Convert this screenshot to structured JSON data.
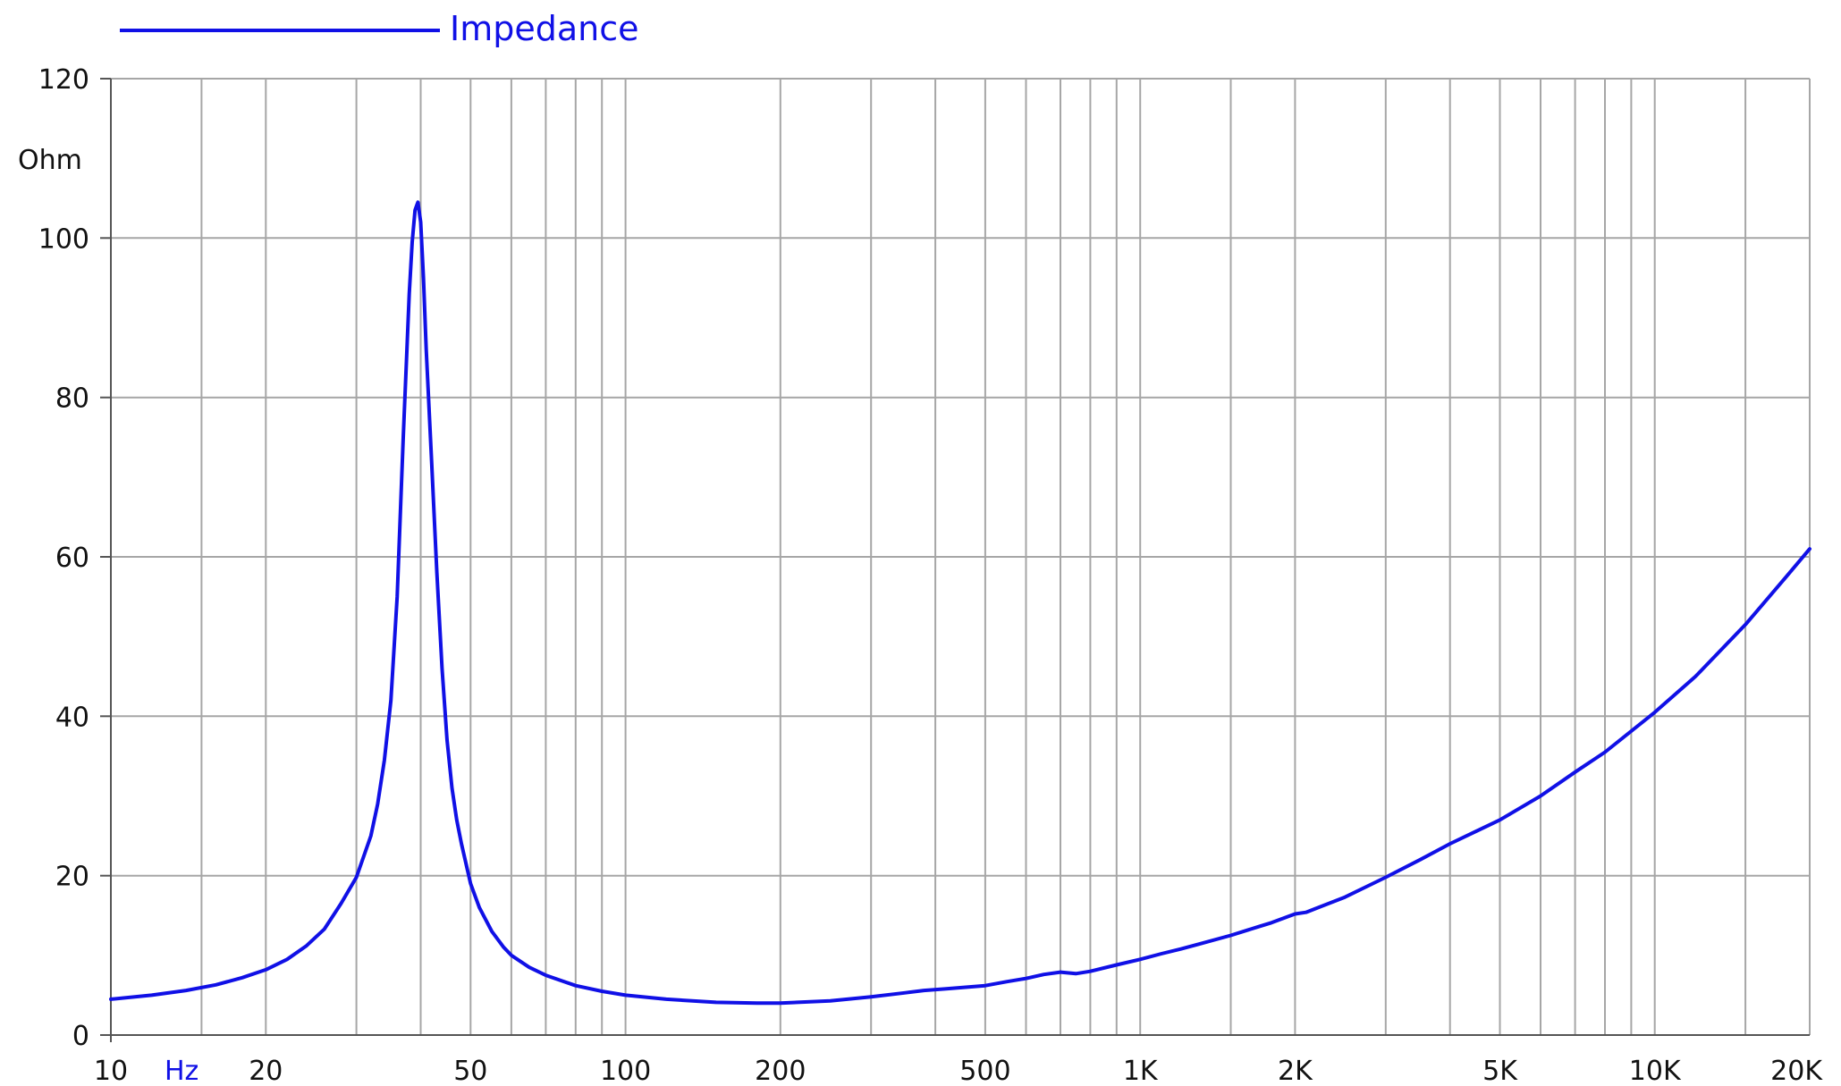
{
  "chart_data": {
    "type": "line",
    "xscale": "log",
    "xlim": [
      10,
      20000
    ],
    "ylim": [
      0,
      120
    ],
    "grid": true,
    "legend_position": "top-left",
    "x_unit_label": "Hz",
    "y_unit_label": "Ohm",
    "x_tick_labels": [
      {
        "value": 10,
        "label": "10"
      },
      {
        "value": 20,
        "label": "20"
      },
      {
        "value": 50,
        "label": "50"
      },
      {
        "value": 100,
        "label": "100"
      },
      {
        "value": 200,
        "label": "200"
      },
      {
        "value": 500,
        "label": "500"
      },
      {
        "value": 1000,
        "label": "1K"
      },
      {
        "value": 2000,
        "label": "2K"
      },
      {
        "value": 5000,
        "label": "5K"
      },
      {
        "value": 10000,
        "label": "10K"
      },
      {
        "value": 20000,
        "label": "20K"
      }
    ],
    "x_gridlines": [
      10,
      15,
      20,
      30,
      40,
      50,
      60,
      70,
      80,
      90,
      100,
      200,
      300,
      400,
      500,
      600,
      700,
      800,
      900,
      1000,
      1500,
      2000,
      3000,
      4000,
      5000,
      6000,
      7000,
      8000,
      9000,
      10000,
      15000,
      20000
    ],
    "y_ticks": [
      0,
      20,
      40,
      60,
      80,
      100,
      120
    ],
    "colors": {
      "series": "#1010e6",
      "grid": "#a6a6a6",
      "unit_hz": "#1010e6"
    },
    "series": [
      {
        "name": "Impedance",
        "x": [
          10,
          12,
          14,
          16,
          18,
          20,
          22,
          24,
          26,
          28,
          30,
          32,
          33,
          34,
          35,
          36,
          37,
          38,
          38.5,
          39,
          39.5,
          40,
          40.5,
          41,
          42,
          43,
          44,
          45,
          46,
          47,
          48,
          50,
          52,
          55,
          58,
          60,
          65,
          70,
          80,
          90,
          100,
          120,
          150,
          180,
          200,
          250,
          300,
          350,
          380,
          420,
          500,
          550,
          600,
          650,
          700,
          750,
          800,
          900,
          1000,
          1100,
          1200,
          1300,
          1500,
          1700,
          1800,
          2000,
          2100,
          2500,
          3000,
          3500,
          4000,
          5000,
          6000,
          7000,
          8000,
          10000,
          12000,
          15000,
          18000,
          20000
        ],
        "y": [
          4.5,
          5,
          5.6,
          6.3,
          7.2,
          8.2,
          9.5,
          11.2,
          13.3,
          16.5,
          19.8,
          25,
          29,
          34.5,
          42,
          55,
          75,
          93,
          99.5,
          103.5,
          104.5,
          102,
          95,
          86,
          72,
          58,
          46,
          37,
          31,
          27,
          24,
          19,
          16,
          13,
          11,
          10,
          8.5,
          7.5,
          6.2,
          5.5,
          5,
          4.5,
          4.1,
          4,
          4,
          4.3,
          4.8,
          5.3,
          5.6,
          5.8,
          6.2,
          6.7,
          7.1,
          7.6,
          7.9,
          7.7,
          8,
          8.8,
          9.5,
          10.2,
          10.8,
          11.4,
          12.5,
          13.6,
          14.1,
          15.2,
          15.4,
          17.3,
          19.8,
          22,
          24,
          27,
          30,
          33,
          35.5,
          40.5,
          45,
          51.5,
          57.5,
          61
        ]
      }
    ]
  }
}
